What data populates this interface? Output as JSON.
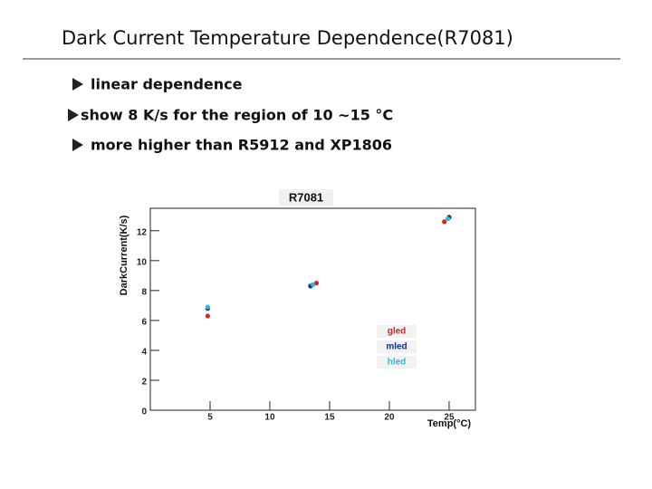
{
  "title": "Dark Current Temperature Dependence(R7081)",
  "bullets": [
    "linear dependence",
    "show  8 K/s for the region of 10 ~15 °C",
    "more higher than R5912 and XP1806"
  ],
  "chart_data": {
    "type": "scatter",
    "title": "R7081",
    "x_label": "Temp(°C)",
    "y_label": "DarkCurrent(K/s)",
    "xlim": [
      0,
      27.2
    ],
    "ylim": [
      0,
      13.5
    ],
    "xticks": [
      5,
      10,
      15,
      20,
      25
    ],
    "yticks": [
      0,
      2,
      4,
      6,
      8,
      10,
      12
    ],
    "grid": false,
    "legend_position": "lower right",
    "series": [
      {
        "name": "gled",
        "color": "#e02020",
        "x": [
          4.8,
          13.9,
          24.6
        ],
        "values": [
          6.3,
          8.5,
          12.6
        ]
      },
      {
        "name": "mled",
        "color": "#1030a0",
        "x": [
          4.8,
          13.4,
          25.0
        ],
        "values": [
          6.8,
          8.3,
          12.9
        ]
      },
      {
        "name": "hled",
        "color": "#20c0e0",
        "x": [
          4.8,
          13.6,
          24.9
        ],
        "values": [
          6.9,
          8.4,
          12.8
        ]
      }
    ]
  }
}
